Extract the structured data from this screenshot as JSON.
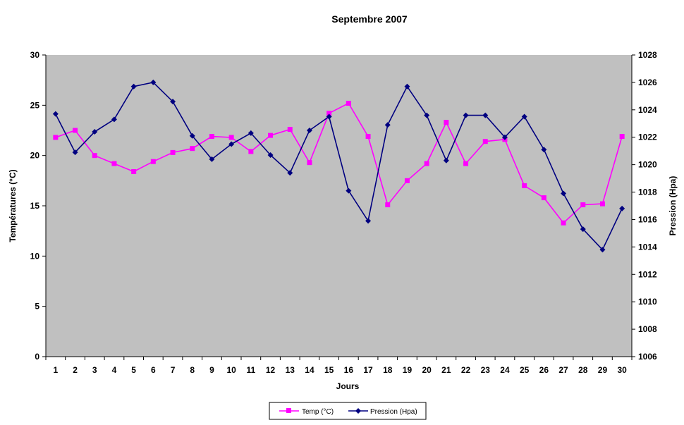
{
  "chart_data": {
    "type": "line",
    "title": "Septembre 2007",
    "xlabel": "Jours",
    "ylabel": "Températures (°C)",
    "y2label": "Pression (Hpa)",
    "categories": [
      "1",
      "2",
      "3",
      "4",
      "5",
      "6",
      "7",
      "8",
      "9",
      "10",
      "11",
      "12",
      "13",
      "14",
      "15",
      "16",
      "17",
      "18",
      "19",
      "20",
      "21",
      "22",
      "23",
      "24",
      "25",
      "26",
      "27",
      "28",
      "29",
      "30"
    ],
    "ylim": [
      0,
      30
    ],
    "yticks": [
      0,
      5,
      10,
      15,
      20,
      25,
      30
    ],
    "y2lim": [
      1006,
      1028
    ],
    "y2ticks": [
      1006,
      1008,
      1010,
      1012,
      1014,
      1016,
      1018,
      1020,
      1022,
      1024,
      1026,
      1028
    ],
    "grid": false,
    "legend": "bottom",
    "series": [
      {
        "name": "Temp (°C)",
        "axis": "left",
        "color": "#ff00ff",
        "marker": "square",
        "values": [
          21.8,
          22.5,
          20.0,
          19.2,
          18.4,
          19.4,
          20.3,
          20.7,
          21.9,
          21.8,
          20.4,
          22.0,
          22.6,
          19.3,
          24.2,
          25.2,
          21.9,
          15.1,
          17.5,
          19.2,
          23.3,
          19.2,
          21.4,
          21.6,
          17.0,
          15.8,
          13.3,
          15.1,
          15.2,
          21.9
        ]
      },
      {
        "name": "Pression (Hpa)",
        "axis": "right",
        "color": "#000080",
        "marker": "diamond",
        "values": [
          1023.7,
          1020.9,
          1022.4,
          1023.3,
          1025.7,
          1026.0,
          1024.6,
          1022.1,
          1020.4,
          1021.5,
          1022.3,
          1020.7,
          1019.4,
          1022.5,
          1023.5,
          1018.1,
          1015.9,
          1022.9,
          1025.7,
          1023.6,
          1020.3,
          1023.6,
          1023.6,
          1022.0,
          1023.5,
          1021.1,
          1017.9,
          1015.3,
          1013.8,
          1016.8
        ]
      }
    ]
  },
  "colors": {
    "plot_background": "#c0c0c0",
    "temp": "#ff00ff",
    "pressure": "#000080"
  }
}
